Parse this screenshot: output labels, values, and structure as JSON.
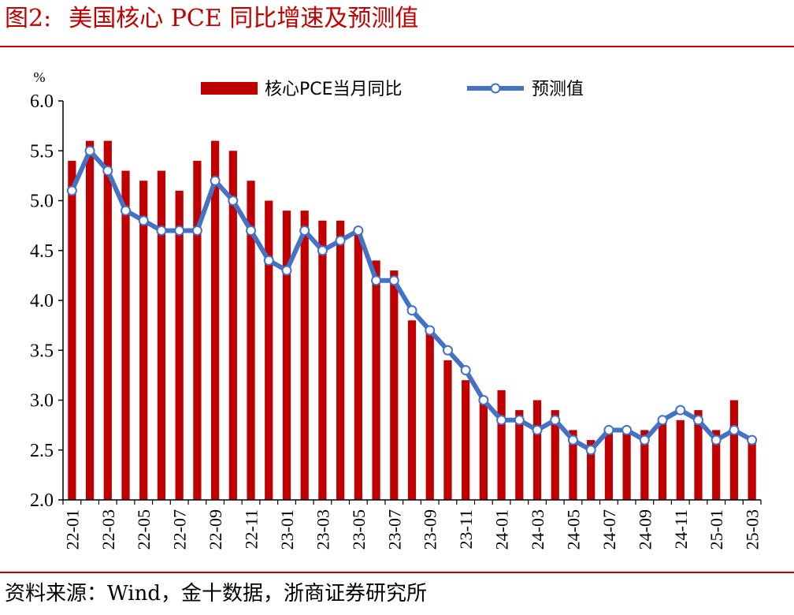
{
  "figure": {
    "label": "图2:",
    "title": "美国核心 PCE 同比增速及预测值",
    "source": "资料来源：Wind，金十数据，浙商证券研究所"
  },
  "colors": {
    "accent": "#c00000",
    "bar": "#c00000",
    "line": "#4472c4"
  },
  "chart_data": {
    "type": "bar",
    "unit": "%",
    "ylim": [
      2.0,
      6.0
    ],
    "yticks": [
      "2.0",
      "2.5",
      "3.0",
      "3.5",
      "4.0",
      "4.5",
      "5.0",
      "5.5",
      "6.0"
    ],
    "legend_position": "top",
    "grid": false,
    "categories": [
      "22-01",
      "22-02",
      "22-03",
      "22-04",
      "22-05",
      "22-06",
      "22-07",
      "22-08",
      "22-09",
      "22-10",
      "22-11",
      "22-12",
      "23-01",
      "23-02",
      "23-03",
      "23-04",
      "23-05",
      "23-06",
      "23-07",
      "23-08",
      "23-09",
      "23-10",
      "23-11",
      "23-12",
      "24-01",
      "24-02",
      "24-03",
      "24-04",
      "24-05",
      "24-06",
      "24-07",
      "24-08",
      "24-09",
      "24-10",
      "24-11",
      "24-12",
      "25-01",
      "25-02",
      "25-03"
    ],
    "xtick_labels": [
      "22-01",
      "22-03",
      "22-05",
      "22-07",
      "22-09",
      "22-11",
      "23-01",
      "23-03",
      "23-05",
      "23-07",
      "23-09",
      "23-11",
      "24-01",
      "24-03",
      "24-05",
      "24-07",
      "24-09",
      "24-11",
      "25-01",
      "25-03"
    ],
    "series": [
      {
        "name": "核心PCE当月同比",
        "type": "bar",
        "values": [
          5.4,
          5.6,
          5.6,
          5.3,
          5.2,
          5.3,
          5.1,
          5.4,
          5.6,
          5.5,
          5.2,
          5.0,
          4.9,
          4.9,
          4.8,
          4.8,
          4.7,
          4.4,
          4.3,
          3.8,
          3.7,
          3.4,
          3.2,
          3.0,
          3.1,
          2.9,
          3.0,
          2.9,
          2.7,
          2.6,
          2.7,
          2.7,
          2.7,
          2.8,
          2.8,
          2.9,
          2.7,
          3.0,
          2.6
        ]
      },
      {
        "name": "预测值",
        "type": "line",
        "values": [
          5.1,
          5.5,
          5.3,
          4.9,
          4.8,
          4.7,
          4.7,
          4.7,
          5.2,
          5.0,
          4.7,
          4.4,
          4.3,
          4.7,
          4.5,
          4.6,
          4.7,
          4.2,
          4.2,
          3.9,
          3.7,
          3.5,
          3.3,
          3.0,
          2.8,
          2.8,
          2.7,
          2.8,
          2.6,
          2.5,
          2.7,
          2.7,
          2.6,
          2.8,
          2.9,
          2.8,
          2.6,
          2.7,
          2.6
        ]
      }
    ]
  }
}
